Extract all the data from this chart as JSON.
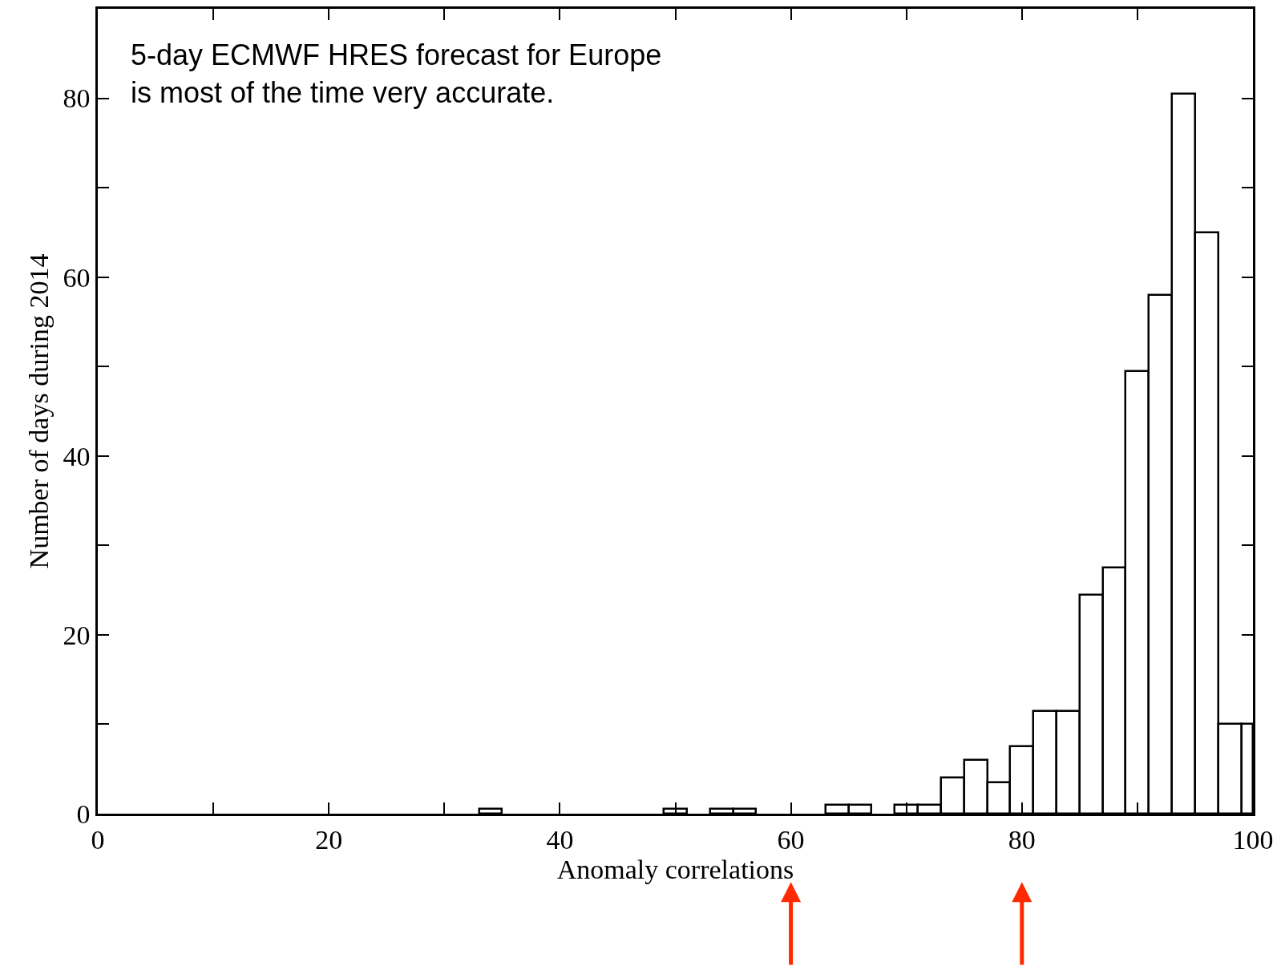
{
  "chart_data": {
    "type": "histogram",
    "xlabel": "Anomaly correlations",
    "ylabel": "Number of days during 2014",
    "annotations": [
      "5-day ECMWF HRES forecast for Europe\nis most of the time very accurate."
    ],
    "bins": [
      33,
      35,
      49,
      51,
      53,
      55,
      57,
      63,
      65,
      67,
      69,
      71,
      73,
      75,
      77,
      79,
      81,
      83,
      85,
      87,
      89,
      91,
      93,
      95,
      97,
      99,
      100
    ],
    "values": [
      0.5,
      0,
      0.5,
      0,
      0.5,
      0.5,
      0,
      1,
      1,
      0,
      1,
      1,
      4,
      6,
      3.5,
      7.5,
      11.5,
      11.5,
      24.5,
      27.5,
      49.5,
      58,
      80.5,
      65,
      10,
      10
    ],
    "color": "#ffffff",
    "xlim": [
      0,
      100
    ],
    "ylim": [
      0,
      90
    ],
    "xticks": [
      0,
      {
        "value": 10,
        "label": null
      },
      20,
      {
        "value": 30,
        "label": null
      },
      40,
      {
        "value": 50,
        "label": null
      },
      60,
      {
        "value": 70,
        "label": null
      },
      80,
      {
        "value": 90,
        "label": null
      },
      100
    ],
    "yticks": [
      0,
      {
        "value": 10,
        "label": null
      },
      20,
      {
        "value": 30,
        "label": null
      },
      40,
      {
        "value": 50,
        "label": null
      },
      60,
      {
        "value": 70,
        "label": null
      },
      80
    ]
  }
}
